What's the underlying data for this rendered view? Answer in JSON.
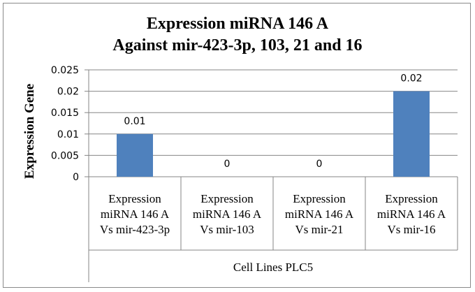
{
  "chart_data": {
    "type": "bar",
    "title": [
      "Expression miRNA 146 A",
      "Against mir-423-3p, 103, 21 and 16"
    ],
    "xlabel": "Cell Lines PLC5",
    "ylabel": "Expression Gene",
    "categories": [
      [
        "Expression",
        "miRNA 146 A",
        "Vs mir-423-3p"
      ],
      [
        "Expression",
        "miRNA 146 A",
        "Vs mir-103"
      ],
      [
        "Expression",
        "miRNA 146 A",
        "Vs mir-21"
      ],
      [
        "Expression",
        "miRNA 146 A",
        "Vs mir-16"
      ]
    ],
    "values": [
      0.01,
      0,
      0,
      0.02
    ],
    "data_labels": [
      "0.01",
      "0",
      "0",
      "0.02"
    ],
    "ylim": [
      0,
      0.025
    ],
    "yticks": [
      "0",
      "0.005",
      "0.01",
      "0.015",
      "0.02",
      "0.025"
    ],
    "grid": true,
    "legend": "none",
    "colors": {
      "bar": "#4f81bd",
      "grid": "#868686",
      "axis": "#868686"
    }
  }
}
